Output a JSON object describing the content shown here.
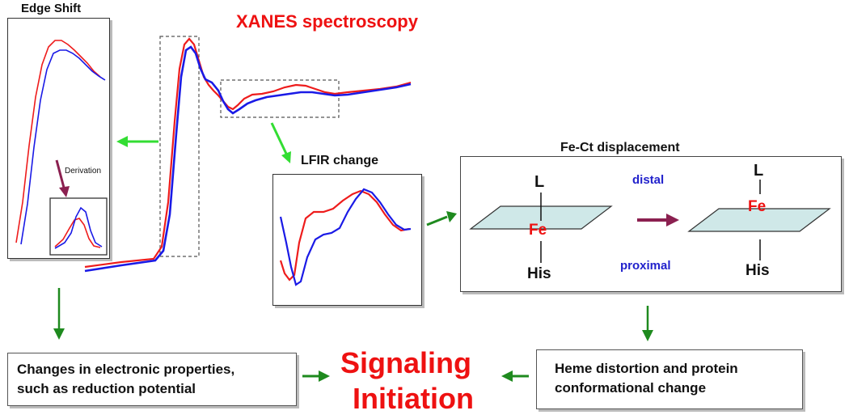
{
  "title": "XANES spectroscopy",
  "edge_shift": {
    "title": "Edge Shift",
    "derivation_label": "Derivation"
  },
  "lfir": {
    "title": "LFIR change"
  },
  "fe_ct": {
    "title": "Fe-Ct displacement",
    "distal_label": "distal",
    "proximal_label": "proximal",
    "left": {
      "top_ligand": "L",
      "metal": "Fe",
      "bottom_ligand": "His"
    },
    "right": {
      "top_ligand": "L",
      "metal": "Fe",
      "bottom_ligand": "His"
    }
  },
  "bottom_left": {
    "line1": "Changes in electronic properties,",
    "line2": "such as reduction potential"
  },
  "bottom_right": {
    "line1": "Heme distortion and protein",
    "line2": "conformational change"
  },
  "center": {
    "line1": "Signaling",
    "line2": "Initiation"
  },
  "colors": {
    "red_series": "#ee1c1c",
    "blue_series": "#1a1ae6",
    "arrow_green": "#33dd33",
    "arrow_dark_green": "#1e8a1e",
    "arrow_purple": "#8b2050",
    "accent_text": "#ee1111",
    "label_blue": "#2222cc",
    "plane_fill": "#cfe8e8"
  }
}
